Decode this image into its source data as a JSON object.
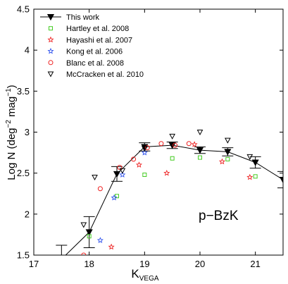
{
  "chart_data": {
    "type": "scatter",
    "xlabel": "K",
    "xlabel_sub": "VEGA",
    "ylabel": "Log N (deg",
    "ylabel_sup1": "−2",
    "ylabel_mid": " mag",
    "ylabel_sup2": "−1",
    "ylabel_end": ")",
    "xlim": [
      17,
      21.5
    ],
    "ylim": [
      1.5,
      4.5
    ],
    "xticks": [
      17,
      18,
      19,
      20,
      21
    ],
    "yticks": [
      1.5,
      2,
      2.5,
      3,
      3.5,
      4,
      4.5
    ],
    "xtick_labels": [
      "17",
      "18",
      "19",
      "20",
      "21"
    ],
    "ytick_labels": [
      "1.5",
      "2",
      "2.5",
      "3",
      "3.5",
      "4",
      "4.5"
    ],
    "annotation": "p−BzK",
    "legend_position": "top-left",
    "series": [
      {
        "name": "This work",
        "marker": "filled-triangle-down-line",
        "color": "#000000",
        "x": [
          17.5,
          18.0,
          18.5,
          19.0,
          19.5,
          20.0,
          20.5,
          21.0,
          21.5
        ],
        "y": [
          1.45,
          1.78,
          2.49,
          2.82,
          2.84,
          2.78,
          2.76,
          2.63,
          2.42
        ],
        "err": [
          0.17,
          0.19,
          0.09,
          0.05,
          0.04,
          0.04,
          0.05,
          0.07,
          0.1
        ]
      },
      {
        "name": "Hartley et al. 2008",
        "marker": "square",
        "color": "#44cc22",
        "x": [
          18.0,
          18.5,
          19.0,
          19.5,
          20.0,
          20.5,
          21.0
        ],
        "y": [
          1.73,
          2.22,
          2.48,
          2.68,
          2.69,
          2.67,
          2.46
        ]
      },
      {
        "name": "Hayashi et al. 2007",
        "marker": "star",
        "color": "#ee2222",
        "x": [
          18.4,
          18.9,
          19.4,
          19.9,
          20.4,
          20.9
        ],
        "y": [
          1.6,
          2.6,
          2.5,
          2.85,
          2.64,
          2.45
        ]
      },
      {
        "name": "Kong et al. 2006",
        "marker": "star",
        "color": "#3355ee",
        "x": [
          18.2,
          18.45,
          18.6,
          19.0
        ],
        "y": [
          1.68,
          2.2,
          2.48,
          2.75
        ]
      },
      {
        "name": "Blanc et al. 2008",
        "marker": "circle",
        "color": "#ee2222",
        "x": [
          17.9,
          18.2,
          18.55,
          18.8,
          19.05,
          19.3,
          19.55,
          19.8
        ],
        "y": [
          1.5,
          2.31,
          2.57,
          2.67,
          2.81,
          2.86,
          2.84,
          2.86
        ]
      },
      {
        "name": "McCracken et al. 2010",
        "marker": "triangle-down",
        "color": "#000000",
        "x": [
          17.9,
          18.1,
          18.6,
          19.0,
          19.5,
          20.0,
          20.5,
          20.9
        ],
        "y": [
          1.87,
          2.45,
          2.53,
          2.8,
          2.95,
          3.0,
          2.9,
          2.7
        ]
      }
    ]
  }
}
